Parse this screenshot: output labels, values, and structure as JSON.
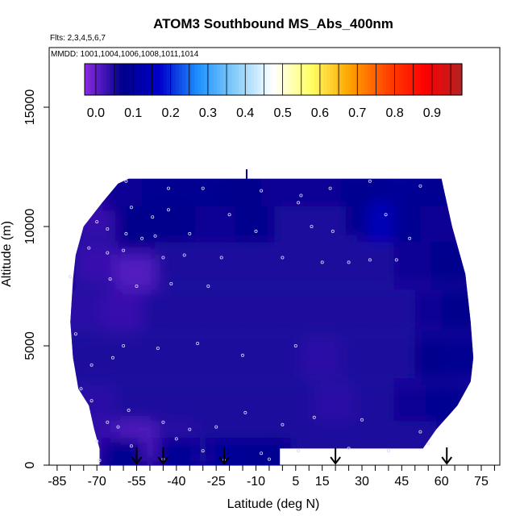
{
  "chart_data": {
    "type": "heatmap",
    "title": "ATOM3 Southbound MS_Abs_400nm",
    "flights_label": "Flts: 2,3,4,5,6,7",
    "mmdd_label": "MMDD: 1001,1004,1006,1008,1011,1014",
    "xlabel": "Latitude (deg N)",
    "ylabel": "Altitude (m)",
    "xlim": [
      -88,
      82
    ],
    "ylim": [
      0,
      17500
    ],
    "x_ticks": [
      -85,
      -70,
      -55,
      -40,
      -25,
      -10,
      5,
      15,
      30,
      45,
      60,
      75
    ],
    "y_ticks": [
      0,
      5000,
      10000,
      15000
    ],
    "grid": false,
    "legend": "colorbar-top",
    "colorbar": {
      "min": -0.03,
      "max": 0.98,
      "tick_values": [
        0.0,
        0.1,
        0.2,
        0.3,
        0.4,
        0.5,
        0.6,
        0.7,
        0.8,
        0.9
      ],
      "tick_labels": [
        "0.0",
        "0.1",
        "0.2",
        "0.3",
        "0.4",
        "0.5",
        "0.6",
        "0.7",
        "0.8",
        "0.9"
      ],
      "colors": [
        "#8a2be2",
        "#00008b",
        "#0000cd",
        "#1e90ff",
        "#87cefa",
        "#ffffff",
        "#ffff66",
        "#ffa500",
        "#ff4500",
        "#ff0000",
        "#b22222"
      ]
    },
    "profile_latitudes": [
      -55,
      -45,
      -22,
      20,
      62
    ],
    "envelope": {
      "left_edge": [
        [
          0,
          -69
        ],
        [
          700,
          -69
        ],
        [
          1500,
          -71
        ],
        [
          2500,
          -73
        ],
        [
          3200,
          -77
        ],
        [
          4500,
          -79
        ],
        [
          6000,
          -80
        ],
        [
          7800,
          -79
        ],
        [
          8800,
          -78
        ],
        [
          10000,
          -75
        ],
        [
          11000,
          -68
        ],
        [
          11800,
          -62
        ],
        [
          12000,
          -58
        ]
      ],
      "right_edge": [
        [
          0,
          -1
        ],
        [
          700,
          -1
        ],
        [
          700,
          53
        ],
        [
          1500,
          58
        ],
        [
          2500,
          66
        ],
        [
          3500,
          71
        ],
        [
          4500,
          72
        ],
        [
          6000,
          71
        ],
        [
          8000,
          69
        ],
        [
          10000,
          64
        ],
        [
          11500,
          61
        ],
        [
          12000,
          60
        ]
      ],
      "top_altitude": 12000
    },
    "cells": [
      {
        "lat": -70,
        "alt": 10500,
        "value": 0.03
      },
      {
        "lat": -60,
        "alt": 11500,
        "value": 0.06
      },
      {
        "lat": -45,
        "alt": 11500,
        "value": 0.08
      },
      {
        "lat": -30,
        "alt": 11500,
        "value": 0.08
      },
      {
        "lat": -15,
        "alt": 11500,
        "value": 0.07
      },
      {
        "lat": 0,
        "alt": 11500,
        "value": 0.06
      },
      {
        "lat": 15,
        "alt": 11500,
        "value": 0.06
      },
      {
        "lat": 30,
        "alt": 11500,
        "value": 0.08
      },
      {
        "lat": 45,
        "alt": 11500,
        "value": 0.09
      },
      {
        "lat": 58,
        "alt": 11500,
        "value": 0.08
      },
      {
        "lat": -55,
        "alt": 10000,
        "value": 0.07
      },
      {
        "lat": -40,
        "alt": 10000,
        "value": 0.07
      },
      {
        "lat": -25,
        "alt": 10000,
        "value": 0.06
      },
      {
        "lat": -10,
        "alt": 10000,
        "value": 0.07
      },
      {
        "lat": 5,
        "alt": 10000,
        "value": 0.05
      },
      {
        "lat": 20,
        "alt": 10000,
        "value": 0.05
      },
      {
        "lat": 32,
        "alt": 10500,
        "value": 0.07
      },
      {
        "lat": 40,
        "alt": 10200,
        "value": 0.14
      },
      {
        "lat": 50,
        "alt": 10200,
        "value": 0.08
      },
      {
        "lat": 60,
        "alt": 10000,
        "value": 0.06
      },
      {
        "lat": -70,
        "alt": 8500,
        "value": 0.03
      },
      {
        "lat": -55,
        "alt": 8000,
        "value": 0.01
      },
      {
        "lat": -40,
        "alt": 8500,
        "value": 0.05
      },
      {
        "lat": -25,
        "alt": 8500,
        "value": 0.05
      },
      {
        "lat": -10,
        "alt": 8500,
        "value": 0.05
      },
      {
        "lat": 5,
        "alt": 8500,
        "value": 0.05
      },
      {
        "lat": 20,
        "alt": 8500,
        "value": 0.05
      },
      {
        "lat": 35,
        "alt": 8500,
        "value": 0.05
      },
      {
        "lat": 50,
        "alt": 8500,
        "value": 0.06
      },
      {
        "lat": 64,
        "alt": 8500,
        "value": 0.07
      },
      {
        "lat": -75,
        "alt": 6500,
        "value": 0.04
      },
      {
        "lat": -60,
        "alt": 6500,
        "value": 0.03
      },
      {
        "lat": -45,
        "alt": 6500,
        "value": 0.05
      },
      {
        "lat": -30,
        "alt": 6500,
        "value": 0.05
      },
      {
        "lat": -15,
        "alt": 6500,
        "value": 0.05
      },
      {
        "lat": 0,
        "alt": 6500,
        "value": 0.05
      },
      {
        "lat": 15,
        "alt": 6500,
        "value": 0.05
      },
      {
        "lat": 30,
        "alt": 6500,
        "value": 0.05
      },
      {
        "lat": 45,
        "alt": 6500,
        "value": 0.05
      },
      {
        "lat": 58,
        "alt": 6500,
        "value": 0.06
      },
      {
        "lat": 68,
        "alt": 6500,
        "value": 0.07
      },
      {
        "lat": -75,
        "alt": 4500,
        "value": 0.05
      },
      {
        "lat": -60,
        "alt": 4500,
        "value": 0.05
      },
      {
        "lat": -45,
        "alt": 4500,
        "value": 0.05
      },
      {
        "lat": -30,
        "alt": 4500,
        "value": 0.05
      },
      {
        "lat": -15,
        "alt": 4500,
        "value": 0.05
      },
      {
        "lat": 0,
        "alt": 4500,
        "value": 0.05
      },
      {
        "lat": 15,
        "alt": 4500,
        "value": 0.04
      },
      {
        "lat": 30,
        "alt": 4500,
        "value": 0.05
      },
      {
        "lat": 45,
        "alt": 4500,
        "value": 0.05
      },
      {
        "lat": 58,
        "alt": 4500,
        "value": 0.07
      },
      {
        "lat": 68,
        "alt": 4500,
        "value": 0.08
      },
      {
        "lat": -70,
        "alt": 2500,
        "value": 0.04
      },
      {
        "lat": -55,
        "alt": 2500,
        "value": 0.05
      },
      {
        "lat": -40,
        "alt": 2500,
        "value": 0.05
      },
      {
        "lat": -25,
        "alt": 2500,
        "value": 0.05
      },
      {
        "lat": -10,
        "alt": 2500,
        "value": 0.05
      },
      {
        "lat": 5,
        "alt": 2500,
        "value": 0.05
      },
      {
        "lat": 20,
        "alt": 2500,
        "value": 0.04
      },
      {
        "lat": 35,
        "alt": 2500,
        "value": 0.05
      },
      {
        "lat": 50,
        "alt": 2500,
        "value": 0.06
      },
      {
        "lat": 62,
        "alt": 2500,
        "value": 0.08
      },
      {
        "lat": -65,
        "alt": 1000,
        "value": 0.03
      },
      {
        "lat": -55,
        "alt": 1000,
        "value": 0.01
      },
      {
        "lat": -40,
        "alt": 1000,
        "value": 0.04
      },
      {
        "lat": -25,
        "alt": 1000,
        "value": 0.05
      },
      {
        "lat": -10,
        "alt": 1000,
        "value": 0.05
      },
      {
        "lat": 5,
        "alt": 1000,
        "value": 0.05
      },
      {
        "lat": 20,
        "alt": 1000,
        "value": 0.05
      },
      {
        "lat": 35,
        "alt": 1000,
        "value": 0.05
      },
      {
        "lat": 50,
        "alt": 1000,
        "value": 0.05
      },
      {
        "lat": -60,
        "alt": 300,
        "value": 0.08
      },
      {
        "lat": -40,
        "alt": 300,
        "value": 0.09
      },
      {
        "lat": -20,
        "alt": 300,
        "value": 0.09
      },
      {
        "lat": -5,
        "alt": 300,
        "value": 0.08
      }
    ],
    "sample_points": [
      [
        -59,
        11900
      ],
      [
        -43,
        11600
      ],
      [
        -30,
        11600
      ],
      [
        -8,
        11500
      ],
      [
        7,
        11300
      ],
      [
        18,
        11600
      ],
      [
        33,
        11900
      ],
      [
        52,
        11700
      ],
      [
        -57,
        10800
      ],
      [
        -43,
        10700
      ],
      [
        -49,
        10400
      ],
      [
        -20,
        10500
      ],
      [
        6,
        11000
      ],
      [
        39,
        10500
      ],
      [
        -70,
        10200
      ],
      [
        -66,
        9900
      ],
      [
        -59,
        9700
      ],
      [
        -53,
        9500
      ],
      [
        -48,
        9600
      ],
      [
        -35,
        9700
      ],
      [
        -10,
        9800
      ],
      [
        11,
        10000
      ],
      [
        19,
        9800
      ],
      [
        48,
        9500
      ],
      [
        -73,
        9100
      ],
      [
        -66,
        8900
      ],
      [
        -60,
        9000
      ],
      [
        -45,
        8700
      ],
      [
        -37,
        8800
      ],
      [
        -23,
        8700
      ],
      [
        0,
        8700
      ],
      [
        15,
        8500
      ],
      [
        25,
        8500
      ],
      [
        33,
        8600
      ],
      [
        43,
        8600
      ],
      [
        -80,
        7900
      ],
      [
        -65,
        7800
      ],
      [
        -55,
        7500
      ],
      [
        -42,
        7600
      ],
      [
        -28,
        7500
      ],
      [
        -78,
        5500
      ],
      [
        -64,
        4500
      ],
      [
        -72,
        4200
      ],
      [
        -60,
        5000
      ],
      [
        -47,
        4900
      ],
      [
        -32,
        5100
      ],
      [
        -15,
        4600
      ],
      [
        5,
        5000
      ],
      [
        -76,
        3200
      ],
      [
        -72,
        2700
      ],
      [
        -58,
        2300
      ],
      [
        -66,
        1800
      ],
      [
        -62,
        1600
      ],
      [
        -45,
        1800
      ],
      [
        -35,
        1500
      ],
      [
        -25,
        1600
      ],
      [
        -14,
        2200
      ],
      [
        0,
        1700
      ],
      [
        12,
        2000
      ],
      [
        30,
        1900
      ],
      [
        52,
        1400
      ],
      [
        -70,
        1000
      ],
      [
        -57,
        800
      ],
      [
        -40,
        1100
      ],
      [
        -30,
        600
      ],
      [
        -8,
        500
      ],
      [
        6,
        600
      ],
      [
        25,
        700
      ],
      [
        40,
        600
      ],
      [
        55,
        900
      ],
      [
        -69,
        200
      ],
      [
        -45,
        250
      ],
      [
        -22,
        200
      ],
      [
        -5,
        250
      ]
    ]
  }
}
